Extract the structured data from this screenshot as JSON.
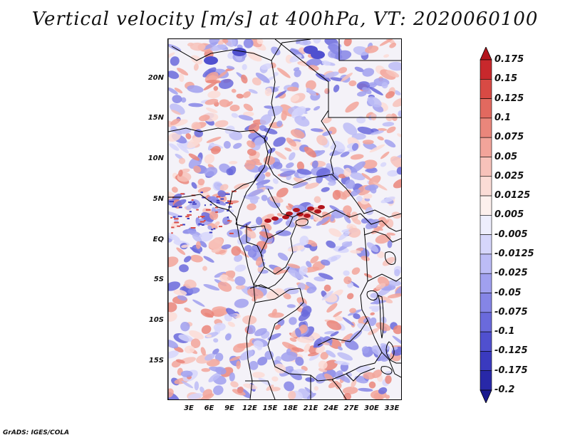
{
  "title": "Vertical velocity [m/s] at 400hPa, VT: 2020060100",
  "lat_labels": [
    "20N",
    "15N",
    "10N",
    "5N",
    "EQ",
    "5S",
    "10S",
    "15S"
  ],
  "lon_labels": [
    "3E",
    "6E",
    "9E",
    "12E",
    "15E",
    "18E",
    "21E",
    "24E",
    "27E",
    "30E",
    "33E"
  ],
  "colorbar": {
    "labels": [
      "0.175",
      "0.15",
      "0.125",
      "0.1",
      "0.075",
      "0.05",
      "0.025",
      "0.0125",
      "0.005",
      "-0.005",
      "-0.0125",
      "-0.025",
      "-0.05",
      "-0.075",
      "-0.1",
      "-0.125",
      "-0.175",
      "-0.2"
    ],
    "colors": [
      "#b3151c",
      "#c8282c",
      "#d84a44",
      "#e2695f",
      "#ea867b",
      "#f2a49a",
      "#f7c2ba",
      "#fbdcd6",
      "#fdf0ed",
      "#eeeefd",
      "#d6d6fb",
      "#bcbcf6",
      "#a0a0ef",
      "#8585e6",
      "#6a6adc",
      "#5050cf",
      "#3a3abf",
      "#2828a8",
      "#1a1a8e"
    ]
  },
  "credit": "GrADS: IGES/COLA",
  "colors": {
    "positive": "#e8877c",
    "negative": "#8a8ae4",
    "neutral": "#f4f2f8",
    "border": "#000000"
  }
}
